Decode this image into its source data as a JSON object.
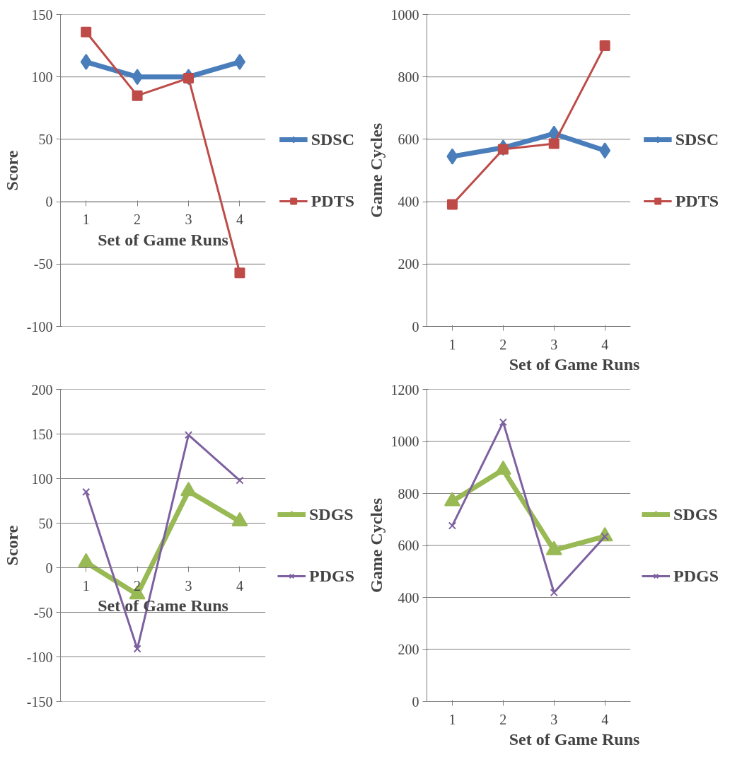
{
  "chart_data": [
    {
      "type": "line",
      "categories": [
        "1",
        "2",
        "3",
        "4"
      ],
      "xlabel": "Set of Game Runs",
      "ylabel": "Score",
      "ylim": [
        -100,
        150
      ],
      "yticks": [
        -100,
        -50,
        0,
        50,
        100,
        150
      ],
      "grid": "y",
      "legend": "right",
      "line_style": "solid",
      "series": [
        {
          "name": "SDSC",
          "color": "#4a7ebb",
          "marker": "diamond",
          "values": [
            112,
            100,
            100,
            112
          ]
        },
        {
          "name": "PDTS",
          "color": "#be4b48",
          "marker": "square",
          "values": [
            136,
            85,
            99,
            -57
          ]
        }
      ]
    },
    {
      "type": "line",
      "categories": [
        "1",
        "2",
        "3",
        "4"
      ],
      "xlabel": "Set of Game Runs",
      "ylabel": "Game Cycles",
      "ylim": [
        0,
        1000
      ],
      "yticks": [
        0,
        200,
        400,
        600,
        800,
        1000
      ],
      "grid": "y",
      "legend": "right",
      "line_style": "solid",
      "series": [
        {
          "name": "SDSC",
          "color": "#4a7ebb",
          "marker": "diamond",
          "values": [
            545,
            573,
            618,
            564
          ]
        },
        {
          "name": "PDTS",
          "color": "#be4b48",
          "marker": "square",
          "values": [
            391,
            568,
            586,
            900
          ]
        }
      ]
    },
    {
      "type": "line",
      "categories": [
        "1",
        "2",
        "3",
        "4"
      ],
      "xlabel": "Set of Game Runs",
      "ylabel": "Score",
      "ylim": [
        -150,
        200
      ],
      "yticks": [
        -150,
        -100,
        -50,
        0,
        50,
        100,
        150,
        200
      ],
      "grid": "y",
      "legend": "right",
      "line_style": "solid",
      "series": [
        {
          "name": "SDGS",
          "color": "#98b954",
          "marker": "triangle",
          "values": [
            6,
            -30,
            86,
            52
          ]
        },
        {
          "name": "PDGS",
          "color": "#7d60a0",
          "marker": "cross",
          "values": [
            85,
            -91,
            149,
            98
          ]
        }
      ]
    },
    {
      "type": "line",
      "categories": [
        "1",
        "2",
        "3",
        "4"
      ],
      "xlabel": "Set of Game Runs",
      "ylabel": "Game Cycles",
      "ylim": [
        0,
        1200
      ],
      "yticks": [
        0,
        200,
        400,
        600,
        800,
        1000,
        1200
      ],
      "grid": "y",
      "legend": "right",
      "line_style": "solid",
      "series": [
        {
          "name": "SDGS",
          "color": "#98b954",
          "marker": "triangle",
          "values": [
            770,
            891,
            582,
            635
          ]
        },
        {
          "name": "PDGS",
          "color": "#7d60a0",
          "marker": "cross",
          "values": [
            676,
            1074,
            419,
            634
          ]
        }
      ]
    }
  ]
}
